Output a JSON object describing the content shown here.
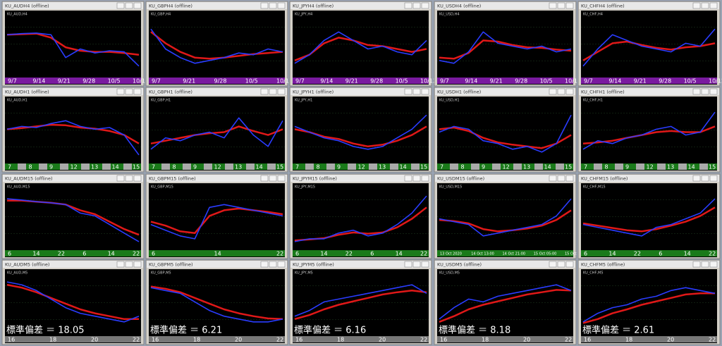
{
  "ylim": [
    0,
    100
  ],
  "colors": {
    "price": "#2a3cff",
    "ma": "#e01818"
  },
  "windows": [
    {
      "title": "KU_AUDH4 (offline)",
      "label": "KU_AUD,H4",
      "xlabels": [
        "9/7",
        "9/14",
        "9/21",
        "9/28",
        "10/5",
        "10/12"
      ],
      "price": [
        70,
        72,
        73,
        70,
        30,
        45,
        38,
        42,
        40,
        15
      ],
      "ma": [
        70,
        71,
        72,
        65,
        48,
        42,
        40,
        40,
        38,
        35
      ]
    },
    {
      "title": "KU_GBPH4 (offline)",
      "label": "KU_GBP,H4",
      "xlabels": [
        "9/7",
        "9/21",
        "9/28",
        "10/5",
        "10/12"
      ],
      "price": [
        80,
        45,
        30,
        20,
        25,
        30,
        38,
        35,
        45,
        40
      ],
      "ma": [
        75,
        55,
        40,
        30,
        28,
        30,
        33,
        36,
        38,
        40
      ]
    },
    {
      "title": "KU_JPYH4 (offline)",
      "label": "KU_JPY,H4",
      "xlabels": [
        "9/7",
        "9/14",
        "9/21",
        "9/28",
        "10/5",
        "10/12"
      ],
      "price": [
        20,
        35,
        60,
        75,
        60,
        45,
        50,
        40,
        35,
        60
      ],
      "ma": [
        25,
        35,
        55,
        65,
        60,
        52,
        50,
        45,
        40,
        45
      ]
    },
    {
      "title": "KU_USDH4 (offline)",
      "label": "KU_USD,H4",
      "xlabels": [
        "9/7",
        "9/14",
        "9/21",
        "9/28",
        "10/5",
        "10/12"
      ],
      "price": [
        25,
        20,
        40,
        75,
        55,
        50,
        45,
        50,
        40,
        45
      ],
      "ma": [
        30,
        28,
        38,
        60,
        58,
        52,
        48,
        47,
        44,
        42
      ]
    },
    {
      "title": "KU_CHFH4 (offline)",
      "label": "KU_CHF,H4",
      "xlabels": [
        "9/7",
        "9/14",
        "9/21",
        "9/28",
        "10/5",
        "10/12"
      ],
      "price": [
        15,
        45,
        70,
        60,
        50,
        45,
        40,
        55,
        50,
        80
      ],
      "ma": [
        25,
        40,
        55,
        58,
        52,
        47,
        44,
        48,
        50,
        55
      ]
    },
    {
      "title": "KU_AUDH1 (offline)",
      "label": "KU_AUD,H1",
      "xlabels": [
        "7",
        "8",
        "9",
        "12",
        "13",
        "14",
        "15"
      ],
      "price": [
        55,
        60,
        58,
        65,
        70,
        60,
        55,
        58,
        45,
        10
      ],
      "ma": [
        55,
        57,
        60,
        63,
        62,
        58,
        56,
        52,
        45,
        30
      ]
    },
    {
      "title": "KU_GBPH1 (offline)",
      "label": "KU_GBP,H1",
      "xlabels": [
        "7",
        "8",
        "9",
        "12",
        "13",
        "14",
        "15"
      ],
      "price": [
        20,
        40,
        35,
        45,
        50,
        40,
        75,
        45,
        25,
        70
      ],
      "ma": [
        30,
        35,
        40,
        45,
        48,
        50,
        60,
        52,
        45,
        55
      ]
    },
    {
      "title": "KU_JPYH1 (offline)",
      "label": "KU_JPY,H1",
      "xlabels": [
        "7",
        "8",
        "9",
        "12",
        "13",
        "14",
        "15"
      ],
      "price": [
        60,
        50,
        40,
        35,
        25,
        20,
        25,
        40,
        55,
        80
      ],
      "ma": [
        55,
        50,
        42,
        38,
        30,
        25,
        28,
        35,
        45,
        60
      ]
    },
    {
      "title": "KU_USDH1 (offline)",
      "label": "KU_USD,H1",
      "xlabels": [
        "7",
        "8",
        "9",
        "12",
        "13",
        "14",
        "15"
      ],
      "price": [
        50,
        60,
        55,
        35,
        30,
        20,
        25,
        15,
        30,
        80
      ],
      "ma": [
        55,
        58,
        52,
        40,
        32,
        28,
        25,
        22,
        30,
        45
      ]
    },
    {
      "title": "KU_CHFH1 (offline)",
      "label": "KU_CHF,H1",
      "xlabels": [
        "7",
        "8",
        "9",
        "12",
        "13",
        "14",
        "15"
      ],
      "price": [
        20,
        35,
        30,
        40,
        45,
        55,
        60,
        45,
        50,
        85
      ],
      "ma": [
        30,
        32,
        35,
        40,
        45,
        50,
        52,
        50,
        50,
        60
      ]
    },
    {
      "title": "KU_AUDM15 (offline)",
      "label": "KU_AUD,M15",
      "xlabels": [
        "6",
        "14",
        "22",
        "6",
        "14",
        "22"
      ],
      "price": [
        85,
        83,
        80,
        78,
        75,
        60,
        55,
        40,
        25,
        10
      ],
      "ma": [
        82,
        82,
        80,
        78,
        75,
        65,
        58,
        45,
        32,
        22
      ]
    },
    {
      "title": "KU_GBPM15 (offline)",
      "label": "KU_GBP,M15",
      "xlabels": [
        "6",
        "14",
        "22"
      ],
      "price": [
        40,
        30,
        20,
        15,
        70,
        75,
        70,
        65,
        60,
        55
      ],
      "ma": [
        45,
        38,
        28,
        25,
        55,
        65,
        68,
        65,
        62,
        58
      ]
    },
    {
      "title": "KU_JPYM15 (offline)",
      "label": "KU_JPY,M15",
      "xlabels": [
        "6",
        "14",
        "22",
        "6",
        "14",
        "22"
      ],
      "price": [
        10,
        15,
        15,
        25,
        30,
        20,
        25,
        40,
        60,
        90
      ],
      "ma": [
        12,
        14,
        16,
        22,
        26,
        24,
        26,
        35,
        50,
        70
      ]
    },
    {
      "title": "KU_USDM15 (offline)",
      "label": "KU_USD,M15",
      "xlabels": [
        "13 Oct 2020",
        "14 Oct 13:00",
        "14 Oct 21:00",
        "15 Oct 05:00",
        "15 Oct 13:00"
      ],
      "price": [
        50,
        45,
        40,
        20,
        25,
        30,
        35,
        40,
        55,
        85
      ],
      "ma": [
        48,
        46,
        42,
        32,
        28,
        30,
        33,
        38,
        48,
        65
      ]
    },
    {
      "title": "KU_CHFM15 (offline)",
      "label": "KU_CHF,M15",
      "xlabels": [
        "6",
        "14",
        "22",
        "6",
        "14",
        "22"
      ],
      "price": [
        40,
        35,
        30,
        25,
        20,
        35,
        40,
        50,
        60,
        85
      ],
      "ma": [
        42,
        38,
        34,
        30,
        28,
        32,
        38,
        45,
        55,
        70
      ]
    },
    {
      "title": "KU_AUDM5 (offline)",
      "label": "KU_AUD,M5",
      "xlabels": [
        "16",
        "18",
        "20",
        "22"
      ],
      "stdev": "標準偏差 ＝ 18.05",
      "price": [
        90,
        85,
        75,
        60,
        45,
        35,
        30,
        25,
        20,
        30
      ],
      "ma": [
        85,
        80,
        72,
        62,
        52,
        42,
        35,
        30,
        25,
        25
      ]
    },
    {
      "title": "KU_GBPM5 (offline)",
      "label": "KU_GBP,M5",
      "xlabels": [
        "16",
        "18",
        "20",
        "22"
      ],
      "stdev": "標準偏差 ＝ 6.21",
      "price": [
        80,
        75,
        70,
        55,
        40,
        30,
        25,
        20,
        20,
        25
      ],
      "ma": [
        82,
        78,
        72,
        62,
        52,
        42,
        35,
        30,
        26,
        25
      ]
    },
    {
      "title": "KU_JPYM5 (offline)",
      "label": "KU_JPY,M5",
      "xlabels": [
        "16",
        "18",
        "20",
        "22"
      ],
      "stdev": "標準偏差 ＝ 6.16",
      "price": [
        30,
        40,
        55,
        60,
        65,
        70,
        75,
        80,
        85,
        70
      ],
      "ma": [
        25,
        32,
        42,
        50,
        56,
        62,
        68,
        72,
        75,
        72
      ]
    },
    {
      "title": "KU_USDM5 (offline)",
      "label": "KU_USD,M5",
      "xlabels": [
        "16",
        "18",
        "20",
        "22"
      ],
      "stdev": "標準偏差 ＝ 8.18",
      "price": [
        25,
        45,
        60,
        55,
        65,
        70,
        75,
        80,
        85,
        75
      ],
      "ma": [
        20,
        30,
        42,
        50,
        56,
        62,
        68,
        72,
        76,
        75
      ]
    },
    {
      "title": "KU_CHFM5 (offline)",
      "label": "KU_CHF,M5",
      "xlabels": [
        "16",
        "18",
        "20",
        "22"
      ],
      "stdev": "標準偏差 ＝ 2.61",
      "price": [
        20,
        35,
        45,
        50,
        60,
        65,
        75,
        80,
        75,
        70
      ],
      "ma": [
        18,
        25,
        35,
        42,
        50,
        56,
        62,
        68,
        70,
        70
      ]
    }
  ]
}
